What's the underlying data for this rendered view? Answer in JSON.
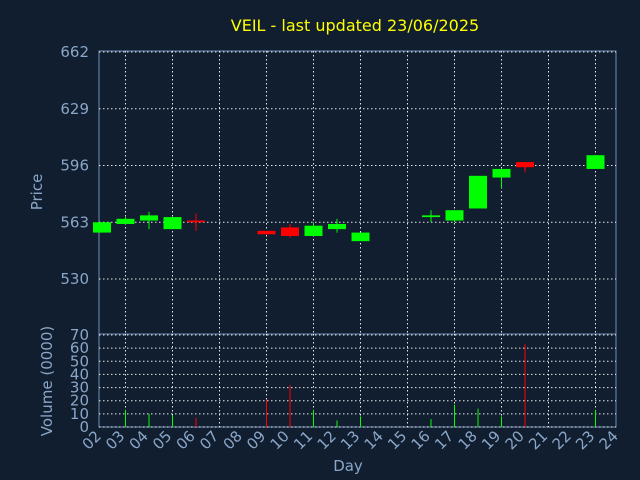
{
  "chart_data": [
    {
      "type": "candlestick",
      "title": "VEIL - last updated 23/06/2025",
      "ylabel": "Price",
      "xlabel": "Day",
      "ylim": [
        530,
        662
      ],
      "yticks": [
        "662",
        "629",
        "596",
        "563",
        "530"
      ],
      "ytick_values": [
        662,
        629,
        596,
        563,
        530
      ],
      "x": [
        "02",
        "03",
        "04",
        "05",
        "06",
        "07",
        "08",
        "09",
        "10",
        "11",
        "12",
        "13",
        "14",
        "15",
        "16",
        "17",
        "18",
        "19",
        "20",
        "21",
        "22",
        "23",
        "24"
      ],
      "colors": {
        "up": "#00ff00",
        "down": "#ff0000"
      },
      "candles": [
        {
          "day": "02",
          "open": 557,
          "close": 563,
          "high": 563,
          "low": 557
        },
        {
          "day": "03",
          "open": 562,
          "close": 565,
          "high": 566,
          "low": 562
        },
        {
          "day": "04",
          "open": 564,
          "close": 567,
          "high": 569,
          "low": 559
        },
        {
          "day": "05",
          "open": 559,
          "close": 566,
          "high": 566,
          "low": 559
        },
        {
          "day": "06",
          "open": 564,
          "close": 563,
          "high": 568,
          "low": 558
        },
        {
          "day": "09",
          "open": 558,
          "close": 556,
          "high": 558,
          "low": 556
        },
        {
          "day": "10",
          "open": 560,
          "close": 555,
          "high": 562,
          "low": 554
        },
        {
          "day": "11",
          "open": 555,
          "close": 561,
          "high": 563,
          "low": 555
        },
        {
          "day": "12",
          "open": 559,
          "close": 562,
          "high": 565,
          "low": 557
        },
        {
          "day": "13",
          "open": 552,
          "close": 557,
          "high": 557,
          "low": 552
        },
        {
          "day": "16",
          "open": 566,
          "close": 567,
          "high": 570,
          "low": 563
        },
        {
          "day": "17",
          "open": 564,
          "close": 570,
          "high": 570,
          "low": 563
        },
        {
          "day": "18",
          "open": 571,
          "close": 590,
          "high": 590,
          "low": 571
        },
        {
          "day": "19",
          "open": 589,
          "close": 594,
          "high": 594,
          "low": 583
        },
        {
          "day": "20",
          "open": 598,
          "close": 595,
          "high": 598,
          "low": 592
        },
        {
          "day": "23",
          "open": 594,
          "close": 602,
          "high": 602,
          "low": 594
        }
      ]
    },
    {
      "type": "bar",
      "ylabel": "Volume (0000)",
      "ylim": [
        0,
        70
      ],
      "yticks": [
        "70",
        "60",
        "50",
        "40",
        "30",
        "20",
        "10",
        "0"
      ],
      "ytick_values": [
        70,
        60,
        50,
        40,
        30,
        20,
        10,
        0
      ],
      "x": [
        "02",
        "03",
        "04",
        "05",
        "06",
        "07",
        "08",
        "09",
        "10",
        "11",
        "12",
        "13",
        "14",
        "15",
        "16",
        "17",
        "18",
        "19",
        "20",
        "21",
        "22",
        "23",
        "24"
      ],
      "volumes": [
        {
          "day": "03",
          "value": 13,
          "dir": "up"
        },
        {
          "day": "04",
          "value": 10,
          "dir": "up"
        },
        {
          "day": "05",
          "value": 9,
          "dir": "up"
        },
        {
          "day": "06",
          "value": 7,
          "dir": "down"
        },
        {
          "day": "09",
          "value": 21,
          "dir": "down"
        },
        {
          "day": "10",
          "value": 32,
          "dir": "down"
        },
        {
          "day": "11",
          "value": 13,
          "dir": "up"
        },
        {
          "day": "12",
          "value": 5,
          "dir": "up"
        },
        {
          "day": "13",
          "value": 8,
          "dir": "up"
        },
        {
          "day": "16",
          "value": 6,
          "dir": "up"
        },
        {
          "day": "17",
          "value": 17,
          "dir": "up"
        },
        {
          "day": "18",
          "value": 14,
          "dir": "up"
        },
        {
          "day": "19",
          "value": 8,
          "dir": "up"
        },
        {
          "day": "20",
          "value": 63,
          "dir": "down"
        },
        {
          "day": "23",
          "value": 13,
          "dir": "up"
        }
      ]
    }
  ]
}
